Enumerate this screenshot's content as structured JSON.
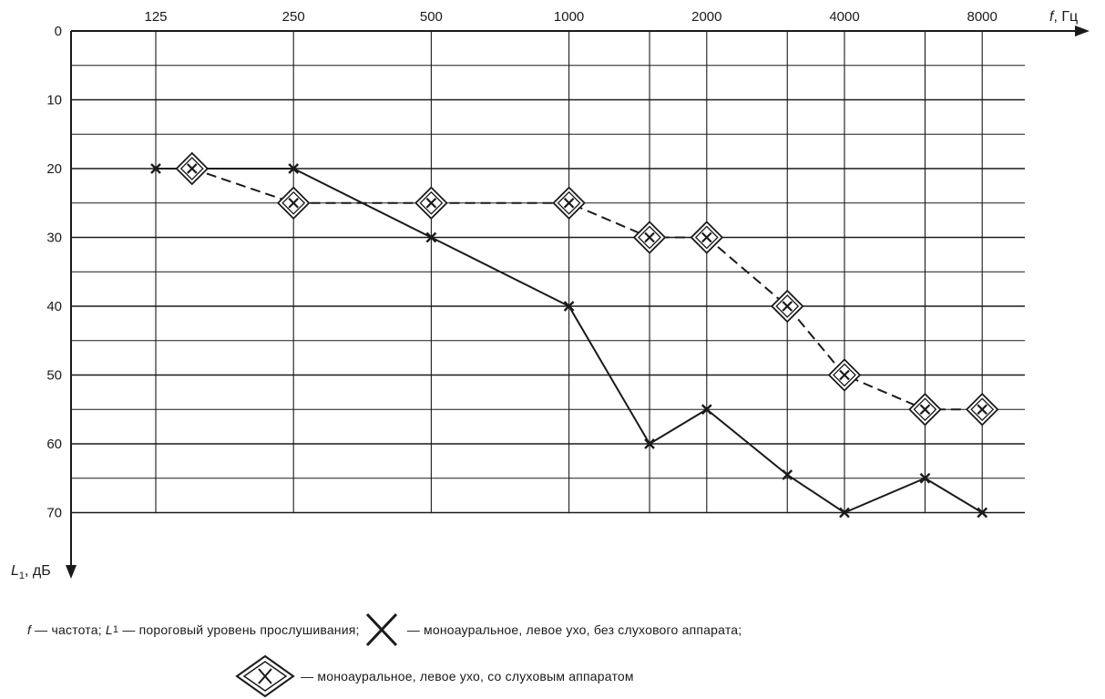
{
  "chart_data": {
    "type": "line",
    "x_axis": {
      "label_var": "f",
      "label_unit": "Гц",
      "scale": "log2",
      "tick_labels": [
        "125",
        "250",
        "500",
        "1000",
        "2000",
        "4000",
        "8000"
      ],
      "ticks": [
        125,
        250,
        500,
        1000,
        2000,
        4000,
        8000
      ],
      "minor_ticks": [
        1500,
        3000,
        6000
      ],
      "position": "top"
    },
    "y_axis": {
      "label_var": "L",
      "label_sub": "1",
      "label_unit": "дБ",
      "inverted": true,
      "ylim": [
        0,
        70
      ],
      "tick_labels": [
        "0",
        "10",
        "20",
        "30",
        "40",
        "50",
        "60",
        "70"
      ],
      "ticks": [
        0,
        10,
        20,
        30,
        40,
        50,
        60,
        70
      ],
      "minor_gridlines": [
        5,
        15,
        25,
        35,
        45,
        55,
        65
      ]
    },
    "grid": true,
    "series": [
      {
        "style": "solid",
        "marker": "x",
        "x": [
          125,
          250,
          500,
          1000,
          1500,
          2000,
          3000,
          4000,
          6000,
          8000
        ],
        "y": [
          20,
          20,
          30,
          40,
          60,
          55,
          64.5,
          70,
          65,
          70
        ]
      },
      {
        "style": "dashed",
        "marker": "diamond-x",
        "x": [
          150,
          250,
          500,
          1000,
          1500,
          2000,
          3000,
          4000,
          6000,
          8000
        ],
        "y": [
          20,
          25,
          25,
          25,
          30,
          30,
          40,
          50,
          55,
          55
        ]
      }
    ]
  },
  "legend": {
    "row1": {
      "f_var": "f",
      "f_desc": " — частота; ",
      "l_var": "L",
      "l_sub": "1",
      "l_desc": " — пороговый уровень прослушивания;",
      "cross_desc": " — моноауральное, левое ухо, без слухового аппарата;"
    },
    "row2": {
      "diamond_desc": " — моноауральное, левое ухо, со слуховым аппаратом"
    }
  }
}
